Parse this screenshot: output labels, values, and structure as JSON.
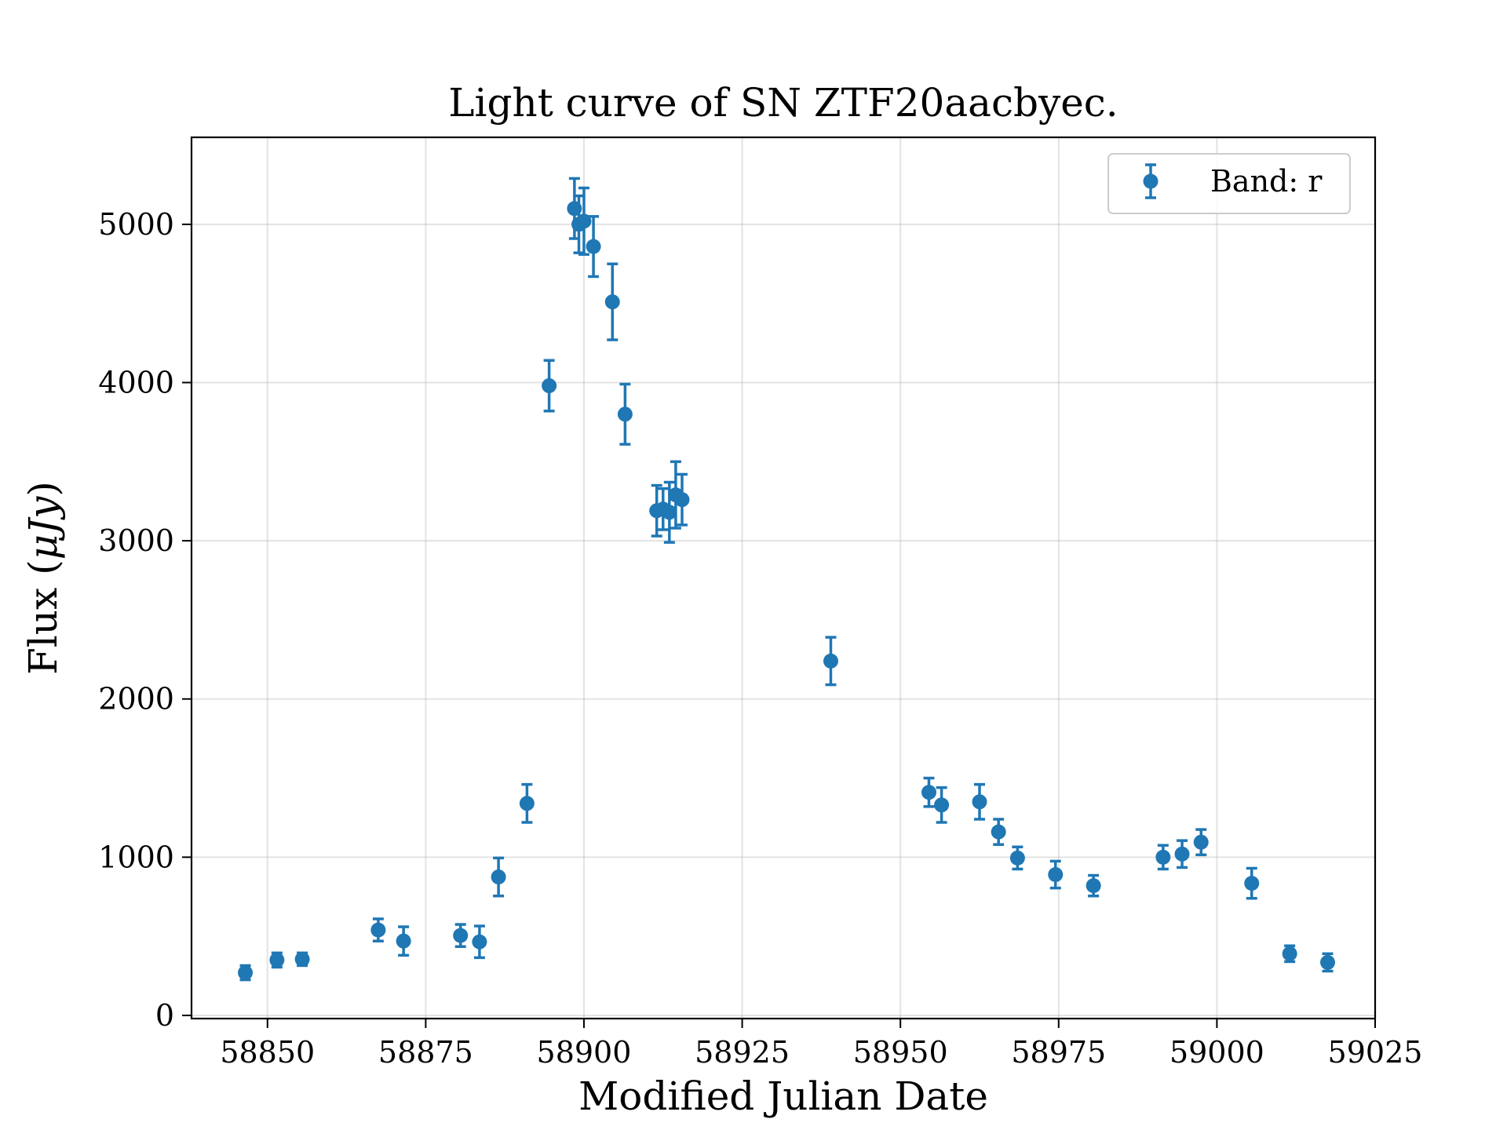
{
  "chart_data": {
    "type": "scatter",
    "title": "Light curve of SN ZTF20aacbyec.",
    "xlabel": "Modified Julian Date",
    "ylabel_prefix": "Flux (",
    "ylabel_unit": "μJy",
    "ylabel_suffix": ")",
    "xlim": [
      58838,
      59025
    ],
    "ylim": [
      -20,
      5550
    ],
    "xticks": [
      58850,
      58875,
      58900,
      58925,
      58950,
      58975,
      59000,
      59025
    ],
    "yticks": [
      0,
      1000,
      2000,
      3000,
      4000,
      5000
    ],
    "grid": true,
    "legend_position": "top-right",
    "series": [
      {
        "name": "Band: r",
        "color": "#1f77b4",
        "points": [
          {
            "x": 58846.5,
            "y": 270,
            "err": 45
          },
          {
            "x": 58851.5,
            "y": 350,
            "err": 45
          },
          {
            "x": 58855.5,
            "y": 355,
            "err": 40
          },
          {
            "x": 58867.5,
            "y": 540,
            "err": 70
          },
          {
            "x": 58871.5,
            "y": 470,
            "err": 90
          },
          {
            "x": 58880.5,
            "y": 505,
            "err": 70
          },
          {
            "x": 58883.5,
            "y": 465,
            "err": 100
          },
          {
            "x": 58886.5,
            "y": 875,
            "err": 120
          },
          {
            "x": 58891.0,
            "y": 1340,
            "err": 120
          },
          {
            "x": 58894.5,
            "y": 3980,
            "err": 160
          },
          {
            "x": 58898.5,
            "y": 5100,
            "err": 190
          },
          {
            "x": 58899.2,
            "y": 5000,
            "err": 180
          },
          {
            "x": 58900.0,
            "y": 5020,
            "err": 210
          },
          {
            "x": 58901.5,
            "y": 4860,
            "err": 190
          },
          {
            "x": 58904.5,
            "y": 4510,
            "err": 240
          },
          {
            "x": 58906.5,
            "y": 3800,
            "err": 190
          },
          {
            "x": 58911.5,
            "y": 3190,
            "err": 160
          },
          {
            "x": 58912.5,
            "y": 3200,
            "err": 130
          },
          {
            "x": 58913.5,
            "y": 3180,
            "err": 190
          },
          {
            "x": 58914.5,
            "y": 3290,
            "err": 210
          },
          {
            "x": 58915.5,
            "y": 3260,
            "err": 160
          },
          {
            "x": 58939.0,
            "y": 2240,
            "err": 150
          },
          {
            "x": 58954.5,
            "y": 1410,
            "err": 90
          },
          {
            "x": 58956.5,
            "y": 1330,
            "err": 110
          },
          {
            "x": 58962.5,
            "y": 1350,
            "err": 110
          },
          {
            "x": 58965.5,
            "y": 1160,
            "err": 80
          },
          {
            "x": 58968.5,
            "y": 995,
            "err": 70
          },
          {
            "x": 58974.5,
            "y": 890,
            "err": 85
          },
          {
            "x": 58980.5,
            "y": 820,
            "err": 65
          },
          {
            "x": 58991.5,
            "y": 1000,
            "err": 75
          },
          {
            "x": 58994.5,
            "y": 1020,
            "err": 85
          },
          {
            "x": 58997.5,
            "y": 1095,
            "err": 80
          },
          {
            "x": 59005.5,
            "y": 835,
            "err": 95
          },
          {
            "x": 59011.5,
            "y": 390,
            "err": 50
          },
          {
            "x": 59017.5,
            "y": 335,
            "err": 55
          }
        ]
      }
    ]
  }
}
